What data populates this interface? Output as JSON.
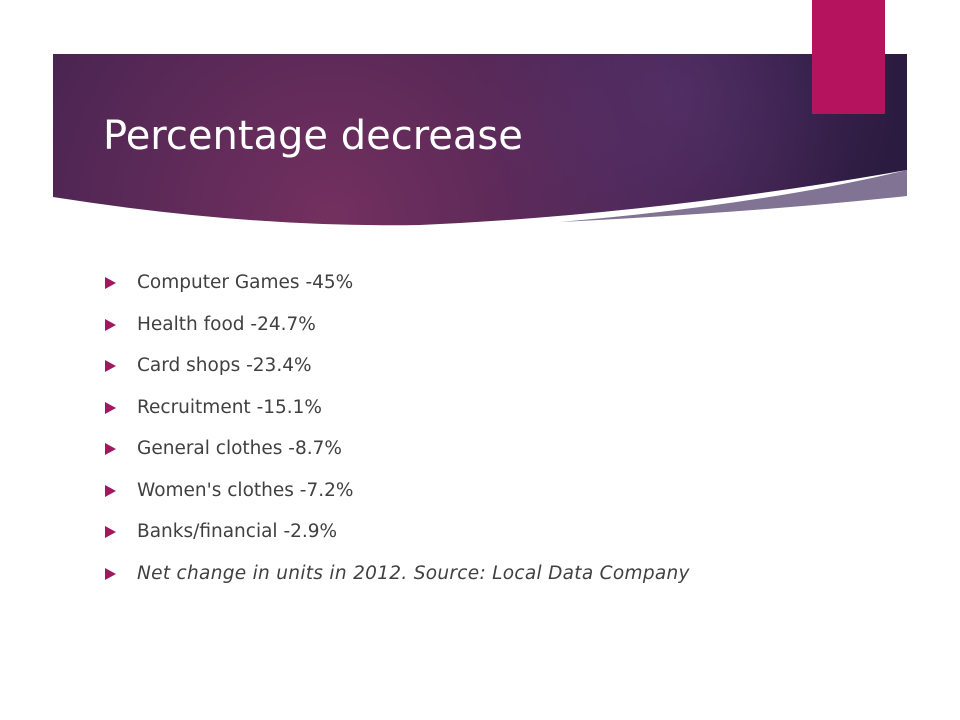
{
  "slide": {
    "title": "Percentage decrease",
    "bullets": [
      "Computer Games -45%",
      "Health food -24.7%",
      "Card shops -23.4%",
      "Recruitment -15.1%",
      "General clothes -8.7%",
      "Women's clothes -7.2%",
      "Banks/financial -2.9%"
    ],
    "note": "Net change in units in 2012. Source: Local Data Company"
  },
  "colors": {
    "banner_dark": "#3a1f4a",
    "banner_accent": "#6f2a5e",
    "accent_tab": "#b5135e",
    "bullet_marker": "#a0195e",
    "body_text": "#404040"
  },
  "icons": {
    "bullet": "right-pointing-triangle"
  }
}
